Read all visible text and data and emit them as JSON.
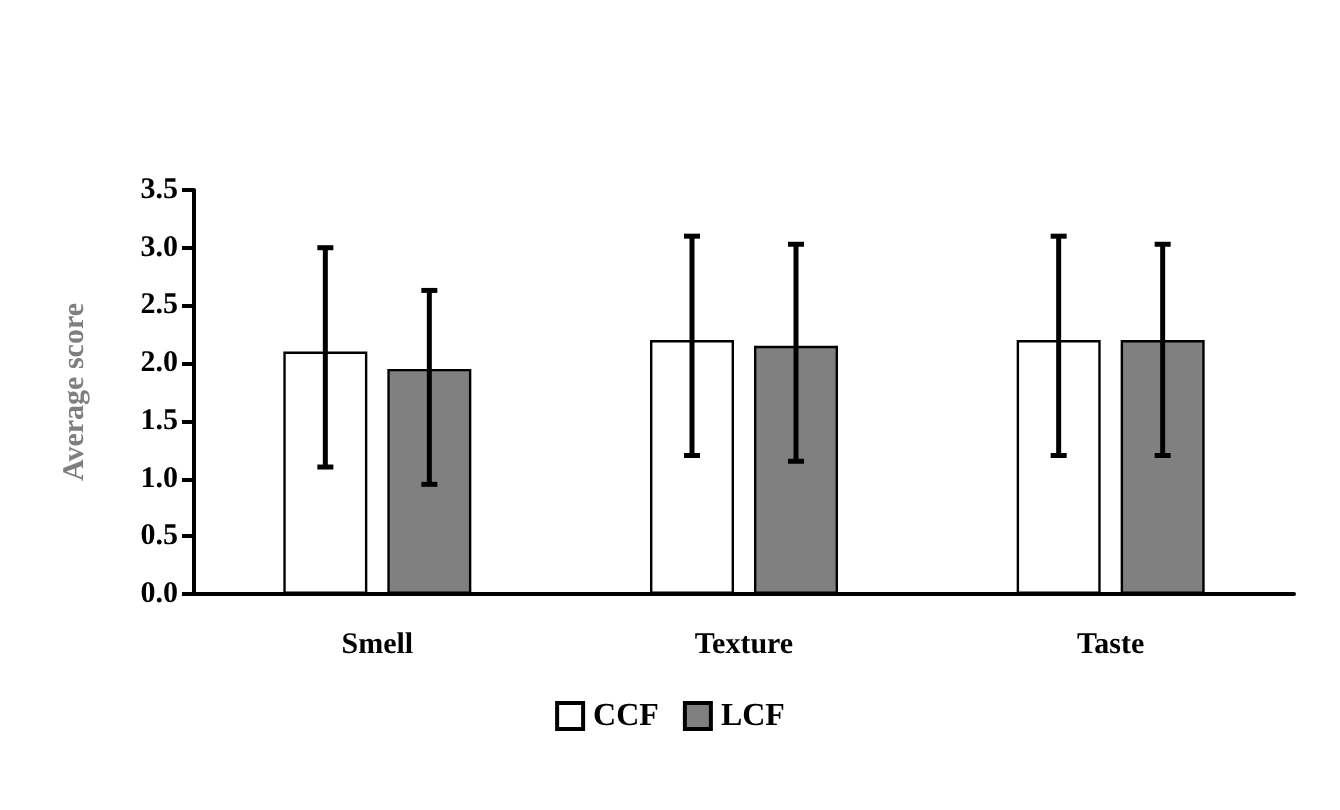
{
  "chart_data": {
    "type": "bar",
    "ylabel": "Average score",
    "categories": [
      "Smell",
      "Texture",
      "Taste"
    ],
    "series": [
      {
        "name": "CCF",
        "color": "#ffffff",
        "values": [
          2.1,
          2.2,
          2.2
        ],
        "errors": [
          [
            1.1,
            3.0
          ],
          [
            1.2,
            3.1
          ],
          [
            1.2,
            3.1
          ]
        ]
      },
      {
        "name": "LCF",
        "color": "#808080",
        "values": [
          1.95,
          2.15,
          2.2
        ],
        "errors": [
          [
            0.95,
            2.63
          ],
          [
            1.15,
            3.03
          ],
          [
            1.2,
            3.03
          ]
        ]
      }
    ],
    "ylim": [
      0,
      3.5
    ],
    "yticks": [
      {
        "value": 0,
        "label": "0.0"
      },
      0.5,
      {
        "value": 1,
        "label": "1.0"
      },
      1.5,
      {
        "value": 2,
        "label": "2.0"
      },
      2.5,
      {
        "value": 3,
        "label": "3.0"
      },
      3.5
    ],
    "grid": false,
    "legend": "bottom"
  }
}
